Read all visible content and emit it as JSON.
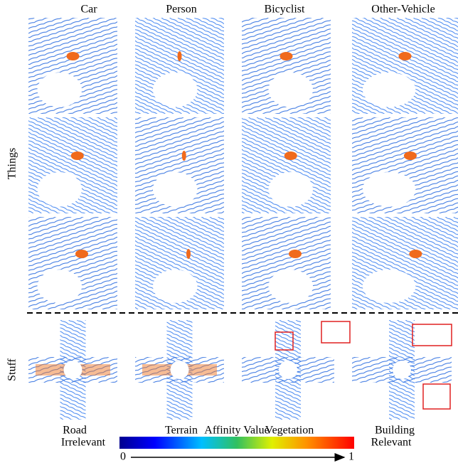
{
  "columns": [
    "Car",
    "Person",
    "Bicyclist",
    "Other-Vehicle"
  ],
  "row_labels": {
    "things": "Things",
    "stuff": "Stuff"
  },
  "stuff_columns": [
    "Road",
    "Terrain",
    "Vegetation",
    "Building"
  ],
  "colorbar": {
    "title": "Affinity Value",
    "left_label": "Irrelevant",
    "right_label": "Relevant",
    "min": 0,
    "max": 1
  }
}
